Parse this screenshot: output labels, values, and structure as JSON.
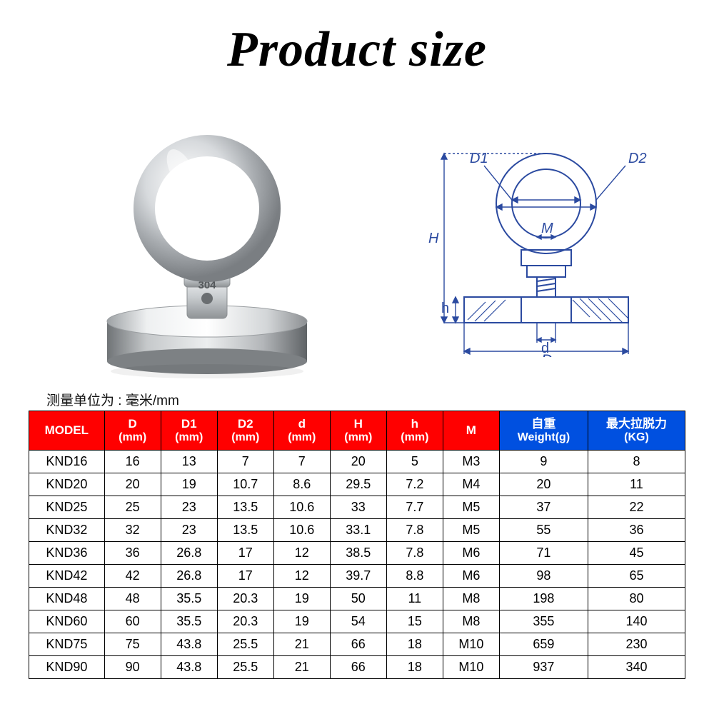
{
  "title": "Product size",
  "unit_caption": "测量单位为 : 毫米/mm",
  "nut_marking": "304",
  "diagram_labels": {
    "D1": "D1",
    "D2": "D2",
    "M": "M",
    "H": "H",
    "h": "h",
    "d": "d",
    "D": "D"
  },
  "table": {
    "header_colors": {
      "model": "#ff0000",
      "dims": "#ff0000",
      "weight": "#0050e0",
      "pull": "#0050e0"
    },
    "header_text_color": "#ffffff",
    "border_color": "#000000",
    "columns": [
      {
        "key": "model",
        "line1": "MODEL",
        "line2": ""
      },
      {
        "key": "D",
        "line1": "D",
        "line2": "(mm)"
      },
      {
        "key": "D1",
        "line1": "D1",
        "line2": "(mm)"
      },
      {
        "key": "D2",
        "line1": "D2",
        "line2": "(mm)"
      },
      {
        "key": "d",
        "line1": "d",
        "line2": "(mm)"
      },
      {
        "key": "H",
        "line1": "H",
        "line2": "(mm)"
      },
      {
        "key": "h",
        "line1": "h",
        "line2": "(mm)"
      },
      {
        "key": "M",
        "line1": "M",
        "line2": ""
      },
      {
        "key": "weight",
        "line1": "自重",
        "line2": "Weight(g)"
      },
      {
        "key": "pull",
        "line1": "最大拉脱力",
        "line2": "(KG)"
      }
    ],
    "rows": [
      [
        "KND16",
        "16",
        "13",
        "7",
        "7",
        "20",
        "5",
        "M3",
        "9",
        "8"
      ],
      [
        "KND20",
        "20",
        "19",
        "10.7",
        "8.6",
        "29.5",
        "7.2",
        "M4",
        "20",
        "11"
      ],
      [
        "KND25",
        "25",
        "23",
        "13.5",
        "10.6",
        "33",
        "7.7",
        "M5",
        "37",
        "22"
      ],
      [
        "KND32",
        "32",
        "23",
        "13.5",
        "10.6",
        "33.1",
        "7.8",
        "M5",
        "55",
        "36"
      ],
      [
        "KND36",
        "36",
        "26.8",
        "17",
        "12",
        "38.5",
        "7.8",
        "M6",
        "71",
        "45"
      ],
      [
        "KND42",
        "42",
        "26.8",
        "17",
        "12",
        "39.7",
        "8.8",
        "M6",
        "98",
        "65"
      ],
      [
        "KND48",
        "48",
        "35.5",
        "20.3",
        "19",
        "50",
        "11",
        "M8",
        "198",
        "80"
      ],
      [
        "KND60",
        "60",
        "35.5",
        "20.3",
        "19",
        "54",
        "15",
        "M8",
        "355",
        "140"
      ],
      [
        "KND75",
        "75",
        "43.8",
        "25.5",
        "21",
        "66",
        "18",
        "M10",
        "659",
        "230"
      ],
      [
        "KND90",
        "90",
        "43.8",
        "25.5",
        "21",
        "66",
        "18",
        "M10",
        "937",
        "340"
      ]
    ]
  }
}
